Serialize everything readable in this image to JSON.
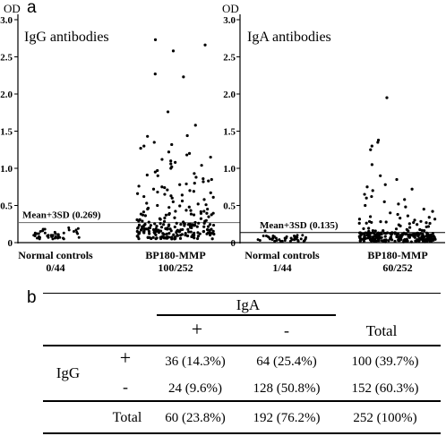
{
  "panel_a_label": "a",
  "panel_b_label": "b",
  "chart_data": [
    {
      "type": "scatter",
      "title": "IgG antibodies",
      "ylabel": "OD",
      "ylim": [
        0,
        3.0
      ],
      "yticks": [
        "0",
        "0.5",
        "1.0",
        "1.5",
        "2.0",
        "2.5",
        "3.0"
      ],
      "threshold": {
        "value": 0.269,
        "label": "Mean+3SD (0.269)"
      },
      "groups": [
        {
          "name": "Normal controls",
          "count_label": "0/44",
          "n": 44,
          "values": [
            0.06,
            0.09,
            0.12,
            0.18,
            0.05,
            0.08,
            0.11,
            0.15,
            0.07,
            0.1,
            0.13,
            0.17,
            0.06,
            0.09,
            0.12,
            0.16,
            0.05,
            0.08,
            0.11,
            0.14,
            0.07,
            0.1,
            0.14,
            0.19,
            0.06,
            0.09,
            0.12,
            0.15,
            0.08,
            0.11,
            0.13,
            0.18,
            0.05,
            0.07,
            0.1,
            0.16,
            0.06,
            0.09,
            0.12,
            0.2,
            0.07,
            0.1,
            0.13,
            0.17
          ]
        },
        {
          "name": "BP180-MMP",
          "count_label": "100/252",
          "n": 252,
          "high_values": [
            2.73,
            2.66,
            2.58,
            2.27,
            2.23,
            1.76,
            1.58,
            1.44,
            1.43,
            1.35,
            1.32,
            1.3,
            1.27,
            1.22,
            1.2,
            1.18,
            1.15,
            1.12,
            1.1,
            1.08,
            1.06,
            1.04,
            1.02,
            1.0,
            0.97,
            0.95,
            0.93,
            0.91,
            0.9,
            0.88,
            0.86,
            0.85,
            0.83,
            0.82,
            0.8,
            0.79,
            0.78,
            0.76,
            0.75,
            0.74,
            0.72,
            0.71,
            0.7,
            0.69,
            0.68,
            0.67,
            0.66,
            0.65,
            0.64,
            0.63,
            0.62,
            0.61,
            0.6,
            0.58,
            0.56,
            0.55,
            0.53,
            0.52,
            0.51,
            0.5
          ],
          "mid_range": [
            0.27,
            0.5
          ],
          "mid_count": 40,
          "low_range": [
            0.05,
            0.269
          ],
          "low_count": 152
        }
      ]
    },
    {
      "type": "scatter",
      "title": "IgA antibodies",
      "ylabel": "OD",
      "ylim": [
        0,
        3.0
      ],
      "yticks": [
        "0",
        "0.5",
        "1.0",
        "1.5",
        "2.0",
        "2.5",
        "3.0"
      ],
      "threshold": {
        "value": 0.135,
        "label": "Mean+3SD (0.135)"
      },
      "groups": [
        {
          "name": "Normal controls",
          "count_label": "1/44",
          "n": 44,
          "values": [
            0.02,
            0.04,
            0.06,
            0.08,
            0.03,
            0.05,
            0.07,
            0.09,
            0.02,
            0.04,
            0.06,
            0.08,
            0.03,
            0.05,
            0.07,
            0.1,
            0.02,
            0.04,
            0.06,
            0.09,
            0.03,
            0.05,
            0.07,
            0.08,
            0.02,
            0.04,
            0.06,
            0.1,
            0.03,
            0.05,
            0.07,
            0.09,
            0.02,
            0.04,
            0.06,
            0.08,
            0.03,
            0.05,
            0.07,
            0.09,
            0.02,
            0.04,
            0.06,
            0.16
          ]
        },
        {
          "name": "BP180-MMP",
          "count_label": "60/252",
          "n": 252,
          "high_values": [
            1.95,
            1.38,
            1.35,
            1.3,
            1.25,
            1.05,
            0.9,
            0.85,
            0.78,
            0.75,
            0.72,
            0.7,
            0.65,
            0.62,
            0.6,
            0.58,
            0.55,
            0.52,
            0.5,
            0.48,
            0.45,
            0.42,
            0.4,
            0.38,
            0.36,
            0.35,
            0.34,
            0.33
          ],
          "mid_range": [
            0.14,
            0.32
          ],
          "mid_count": 32,
          "low_range": [
            0.01,
            0.135
          ],
          "low_count": 192
        }
      ]
    }
  ],
  "table": {
    "column_group_label": "IgA",
    "col_plus": "+",
    "col_minus": "-",
    "col_total": "Total",
    "row_group_label": "IgG",
    "rows": [
      {
        "label": "+",
        "plus": "36 (14.3%)",
        "minus": "64 (25.4%)",
        "total": "100 (39.7%)"
      },
      {
        "label": "-",
        "plus": "24 (9.6%)",
        "minus": "128 (50.8%)",
        "total": "152 (60.3%)"
      }
    ],
    "total_row": {
      "label": "Total",
      "plus": "60 (23.8%)",
      "minus": "192 (76.2%)",
      "total": "252 (100%)"
    }
  }
}
